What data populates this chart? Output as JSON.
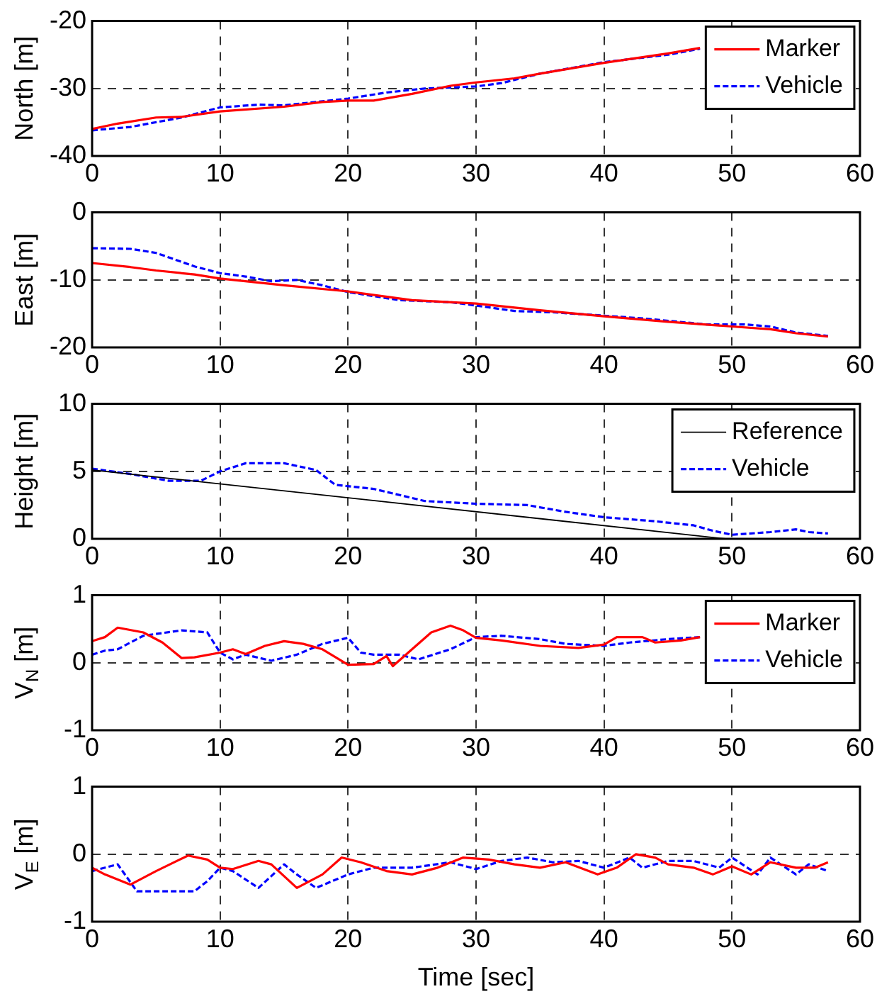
{
  "chart_data": [
    {
      "type": "line",
      "ylabel": "North [m]",
      "xlim": [
        0,
        60
      ],
      "xticks": [
        0,
        10,
        20,
        30,
        40,
        50,
        60
      ],
      "ylim": [
        -40,
        -20
      ],
      "yticks": [
        -40,
        -30,
        -20
      ],
      "grid": true,
      "legend": "top right",
      "series": [
        {
          "name": "Marker",
          "color": "#ff0000",
          "line_style": "solid",
          "x": [
            0,
            2,
            5,
            7,
            10,
            15,
            18,
            20,
            22,
            25,
            28,
            30,
            33,
            35,
            40,
            45,
            47.5
          ],
          "values": [
            -36,
            -35.2,
            -34.3,
            -34.2,
            -33.4,
            -32.7,
            -32,
            -31.8,
            -31.8,
            -30.8,
            -29.6,
            -29.1,
            -28.5,
            -27.8,
            -26.2,
            -24.8,
            -24
          ]
        },
        {
          "name": "Vehicle",
          "color": "#0000ff",
          "line_style": "dashed",
          "x": [
            0,
            3,
            7,
            10,
            13,
            15,
            20,
            23,
            26,
            30,
            32,
            35,
            40,
            45,
            47.5
          ],
          "values": [
            -36.2,
            -35.7,
            -34.3,
            -32.8,
            -32.4,
            -32.5,
            -31.5,
            -30.6,
            -30,
            -29.7,
            -29.2,
            -27.8,
            -26.1,
            -25,
            -24.1
          ]
        }
      ]
    },
    {
      "type": "line",
      "ylabel": "East [m]",
      "xlim": [
        0,
        60
      ],
      "xticks": [
        0,
        10,
        20,
        30,
        40,
        50,
        60
      ],
      "ylim": [
        -20,
        0
      ],
      "yticks": [
        -20,
        -10,
        0
      ],
      "grid": true,
      "series": [
        {
          "color": "#ff0000",
          "line_style": "solid",
          "x": [
            0,
            3,
            5,
            8,
            10,
            15,
            20,
            25,
            30,
            35,
            40,
            45,
            50,
            53,
            55,
            57.5
          ],
          "values": [
            -7.5,
            -8.1,
            -8.6,
            -9.2,
            -9.8,
            -10.8,
            -11.7,
            -13,
            -13.5,
            -14.5,
            -15.4,
            -16.2,
            -16.9,
            -17.3,
            -17.9,
            -18.4
          ]
        },
        {
          "color": "#0000ff",
          "line_style": "dashed",
          "x": [
            0,
            3,
            5,
            8,
            10,
            12,
            14,
            16,
            18,
            20,
            24,
            28,
            30,
            33,
            36,
            40,
            43,
            48,
            51,
            53,
            55,
            57.5
          ],
          "values": [
            -5.3,
            -5.4,
            -6,
            -8,
            -9,
            -9.5,
            -10.2,
            -10,
            -10.8,
            -11.8,
            -13,
            -13.3,
            -13.8,
            -14.6,
            -14.8,
            -15.3,
            -15.7,
            -16.6,
            -16.6,
            -16.9,
            -17.8,
            -18.3
          ]
        }
      ]
    },
    {
      "type": "line",
      "ylabel": "Height [m]",
      "xlim": [
        0,
        60
      ],
      "xticks": [
        0,
        10,
        20,
        30,
        40,
        50,
        60
      ],
      "ylim": [
        0,
        10
      ],
      "yticks": [
        0,
        5,
        10
      ],
      "grid": true,
      "legend": "top right",
      "series": [
        {
          "name": "Reference",
          "color": "#000000",
          "line_style": "solid",
          "x": [
            0,
            49.5
          ],
          "values": [
            5.1,
            0
          ]
        },
        {
          "name": "Vehicle",
          "color": "#0000ff",
          "line_style": "dashed",
          "x": [
            0,
            3,
            6,
            8.5,
            10,
            12,
            15,
            17.5,
            19,
            22,
            26,
            30,
            34,
            37,
            40,
            44,
            47,
            48.5,
            50,
            53,
            55,
            56,
            57.5
          ],
          "values": [
            5.2,
            4.8,
            4.3,
            4.3,
            5,
            5.6,
            5.6,
            5.1,
            4,
            3.7,
            2.8,
            2.6,
            2.5,
            2,
            1.6,
            1.3,
            1,
            0.6,
            0.3,
            0.5,
            0.7,
            0.5,
            0.4
          ]
        }
      ]
    },
    {
      "type": "line",
      "ylabel": "V$_{N}$ [m]",
      "xlim": [
        0,
        60
      ],
      "xticks": [
        0,
        10,
        20,
        30,
        40,
        50,
        60
      ],
      "ylim": [
        -1,
        1
      ],
      "yticks": [
        -1,
        0,
        1
      ],
      "grid": true,
      "legend": "top right",
      "series": [
        {
          "name": "Marker",
          "color": "#ff0000",
          "line_style": "solid",
          "x": [
            0,
            1,
            2,
            4,
            5.5,
            7,
            8,
            10,
            11,
            12,
            13.5,
            15,
            16.5,
            18,
            20,
            22,
            23,
            23.5,
            25,
            26.5,
            28,
            29,
            30,
            32,
            35,
            38,
            40,
            41,
            43,
            44,
            46,
            47.5
          ],
          "values": [
            0.32,
            0.38,
            0.52,
            0.45,
            0.3,
            0.07,
            0.08,
            0.15,
            0.2,
            0.13,
            0.25,
            0.32,
            0.28,
            0.2,
            -0.03,
            -0.02,
            0.1,
            -0.05,
            0.2,
            0.45,
            0.55,
            0.48,
            0.37,
            0.33,
            0.25,
            0.22,
            0.27,
            0.38,
            0.38,
            0.3,
            0.33,
            0.38
          ]
        },
        {
          "name": "Vehicle",
          "color": "#0000ff",
          "line_style": "dashed",
          "x": [
            0,
            1,
            2,
            4,
            7,
            9,
            9.5,
            10,
            11,
            12,
            14,
            16,
            18,
            20,
            21,
            22,
            24,
            25.5,
            28,
            30,
            32,
            35,
            37,
            40,
            42,
            45,
            47.5
          ],
          "values": [
            0.12,
            0.18,
            0.2,
            0.4,
            0.48,
            0.45,
            0.3,
            0.15,
            0.05,
            0.12,
            0.03,
            0.12,
            0.28,
            0.37,
            0.15,
            0.12,
            0.12,
            0.05,
            0.2,
            0.38,
            0.4,
            0.35,
            0.28,
            0.25,
            0.3,
            0.35,
            0.38
          ]
        }
      ]
    },
    {
      "type": "line",
      "ylabel": "V$_{E}$ [m]",
      "xlabel": "Time [sec]",
      "xlim": [
        0,
        60
      ],
      "xticks": [
        0,
        10,
        20,
        30,
        40,
        50,
        60
      ],
      "ylim": [
        -1,
        1
      ],
      "yticks": [
        -1,
        0,
        1
      ],
      "grid": true,
      "series": [
        {
          "color": "#ff0000",
          "line_style": "solid",
          "x": [
            0,
            1,
            3,
            5,
            7.5,
            9,
            10,
            11,
            13,
            14,
            16,
            18,
            19.5,
            21,
            23,
            25,
            27,
            29,
            31,
            33,
            35,
            37,
            39.5,
            41,
            42.5,
            44,
            45,
            47,
            48.5,
            50,
            51.5,
            53,
            55,
            56.5,
            57.5
          ],
          "values": [
            -0.2,
            -0.3,
            -0.45,
            -0.25,
            -0.02,
            -0.08,
            -0.2,
            -0.22,
            -0.1,
            -0.15,
            -0.5,
            -0.3,
            -0.05,
            -0.12,
            -0.25,
            -0.3,
            -0.2,
            -0.05,
            -0.08,
            -0.15,
            -0.2,
            -0.12,
            -0.3,
            -0.2,
            0,
            -0.05,
            -0.15,
            -0.2,
            -0.3,
            -0.18,
            -0.3,
            -0.12,
            -0.2,
            -0.2,
            -0.12
          ]
        },
        {
          "color": "#0000ff",
          "line_style": "dashed",
          "x": [
            0,
            2,
            3.5,
            6,
            8,
            9,
            10,
            11,
            13,
            15,
            16,
            17.5,
            20,
            22,
            25,
            28,
            30,
            32,
            34,
            36,
            38,
            40,
            42,
            43,
            45,
            47,
            49,
            50,
            52,
            53,
            55,
            56,
            57.5
          ],
          "values": [
            -0.25,
            -0.15,
            -0.55,
            -0.55,
            -0.55,
            -0.4,
            -0.2,
            -0.25,
            -0.5,
            -0.15,
            -0.3,
            -0.5,
            -0.3,
            -0.2,
            -0.2,
            -0.12,
            -0.22,
            -0.1,
            -0.05,
            -0.12,
            -0.1,
            -0.2,
            -0.05,
            -0.2,
            -0.1,
            -0.1,
            -0.2,
            -0.05,
            -0.3,
            -0.05,
            -0.3,
            -0.15,
            -0.25
          ]
        }
      ]
    }
  ]
}
